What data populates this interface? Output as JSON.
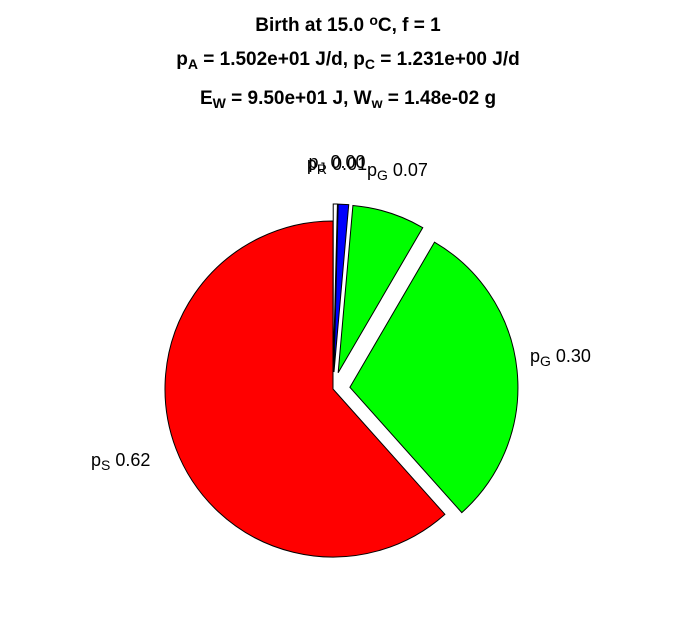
{
  "chart_data": {
    "type": "pie",
    "title_lines": [
      {
        "segments": [
          {
            "text": "Birth at 15.0 ",
            "style": "normal"
          },
          {
            "text": "o",
            "style": "sup"
          },
          {
            "text": "C, f = 1",
            "style": "normal"
          }
        ]
      },
      {
        "segments": [
          {
            "text": "p",
            "style": "normal"
          },
          {
            "text": "A",
            "style": "sub"
          },
          {
            "text": " = 1.502e+01 J/d, p",
            "style": "normal"
          },
          {
            "text": "C",
            "style": "sub"
          },
          {
            "text": " = 1.231e+00 J/d",
            "style": "normal"
          }
        ]
      },
      {
        "segments": [
          {
            "text": "E",
            "style": "normal"
          },
          {
            "text": "W",
            "style": "sub"
          },
          {
            "text": " = 9.50e+01 J, W",
            "style": "normal"
          },
          {
            "text": "w",
            "style": "sub"
          },
          {
            "text": " = 1.48e-02 g",
            "style": "normal"
          }
        ]
      }
    ],
    "slices": [
      {
        "symbol": "p",
        "subscript": "J",
        "value_text": "0.00",
        "value": 0.004,
        "color": "#ffffff",
        "exploded": true
      },
      {
        "symbol": "p",
        "subscript": "R",
        "value_text": "0.01",
        "value": 0.01,
        "color": "#0000ff",
        "exploded": true
      },
      {
        "symbol": "p",
        "subscript": "G",
        "value_text": "0.07",
        "value": 0.07,
        "color": "#00ff00",
        "exploded": true
      },
      {
        "symbol": "p",
        "subscript": "G",
        "value_text": "0.30",
        "value": 0.3,
        "color": "#00ff00",
        "exploded": true
      },
      {
        "symbol": "p",
        "subscript": "S",
        "value_text": "0.62",
        "value": 0.616,
        "color": "#ff0000",
        "exploded": false
      }
    ]
  }
}
